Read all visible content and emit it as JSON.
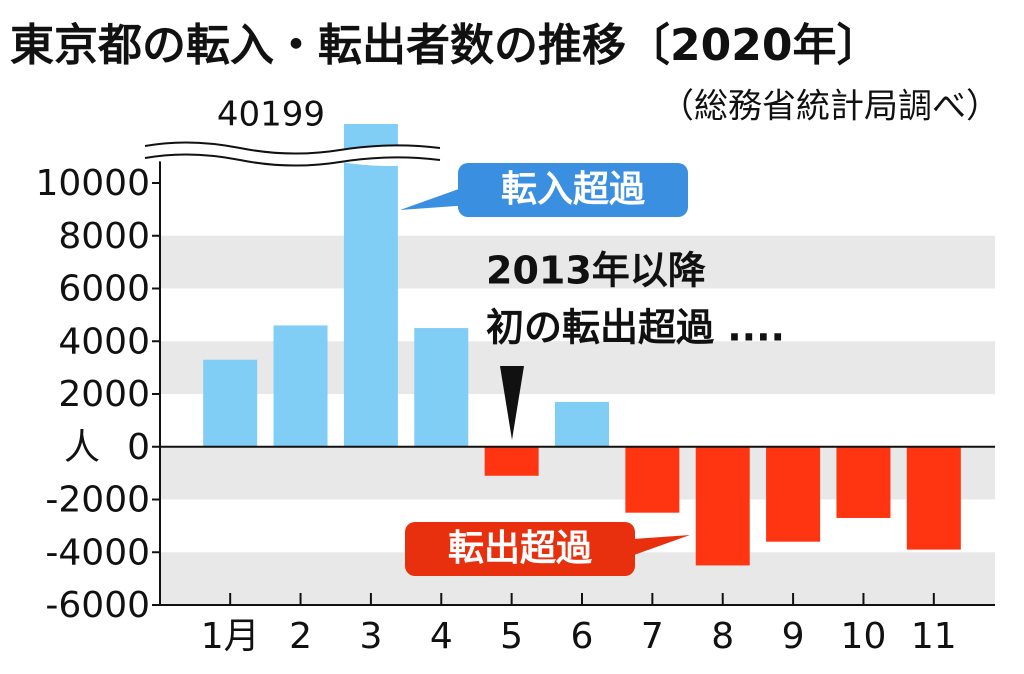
{
  "chart_data": {
    "type": "bar",
    "title": "東京都の転入・転出者数の推移〔2020年〕",
    "subtitle": "（総務省統計局調べ）",
    "y_label": "人",
    "categories": [
      "1月",
      "2",
      "3",
      "4",
      "5",
      "6",
      "7",
      "8",
      "9",
      "10",
      "11"
    ],
    "values": [
      3300,
      4600,
      40199,
      4500,
      -1100,
      1700,
      -2500,
      -4500,
      -3600,
      -2700,
      -3900
    ],
    "value_labels": [
      null,
      null,
      "40199",
      null,
      null,
      null,
      null,
      null,
      null,
      null,
      null
    ],
    "color": "#80cdf6",
    "negative_color": "#ff3512",
    "ylim": [
      -6000,
      10000
    ],
    "yticks": [
      10000,
      8000,
      6000,
      4000,
      2000,
      0,
      -2000,
      -4000,
      -6000
    ],
    "grid": "bands",
    "axis_break": true,
    "annotations": [
      "転入超過",
      "2013年以降",
      "初の転出超過 ....",
      "転出超過"
    ]
  }
}
